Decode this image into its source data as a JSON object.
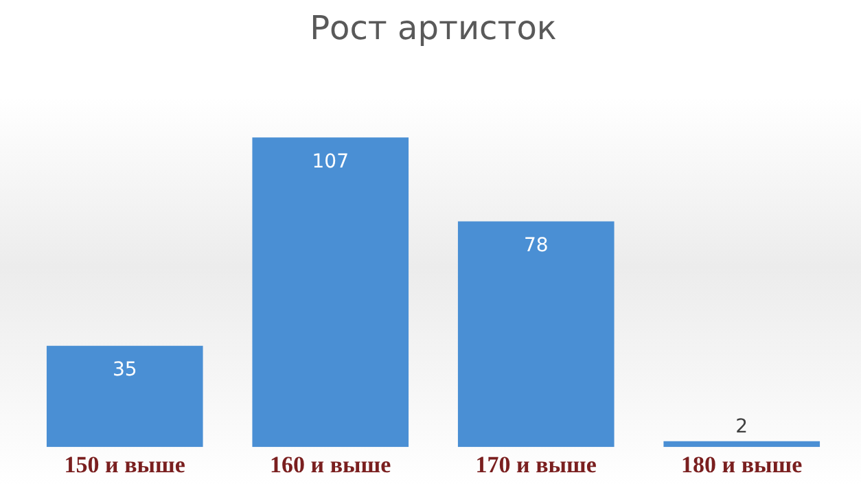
{
  "chart_data": {
    "type": "bar",
    "title": "Рост артисток",
    "categories": [
      "150 и выше",
      "160 и выше",
      "170 и выше",
      "180 и выше"
    ],
    "values": [
      35,
      107,
      78,
      2
    ],
    "color": "#4a8fd4",
    "data_labels": true,
    "grid": false,
    "legend": false
  }
}
